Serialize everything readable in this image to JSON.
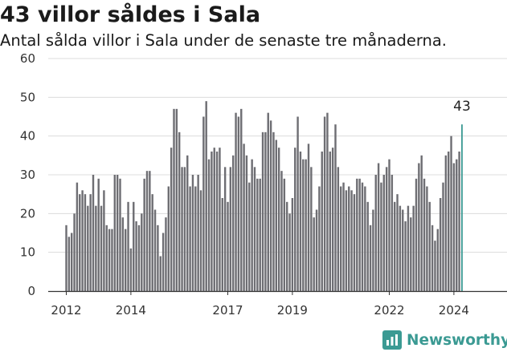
{
  "header": {
    "title": "43 villor såldes i Sala",
    "subtitle": "Antal sålda villor i Sala under de senaste tre månaderna."
  },
  "brand": {
    "name": "Newsworthy",
    "color": "#3b9a93"
  },
  "colors": {
    "bar": "#6e6e73",
    "highlight": "#3b9a93"
  },
  "chart_data": {
    "type": "bar",
    "title": "43 villor såldes i Sala",
    "subtitle": "Antal sålda villor i Sala under de senaste tre månaderna.",
    "xlabel": "",
    "ylabel": "",
    "ylim": [
      0,
      60
    ],
    "yticks": [
      0,
      10,
      20,
      30,
      40,
      50,
      60
    ],
    "xticks": [
      "2012",
      "2014",
      "2017",
      "2019",
      "2022",
      "2024"
    ],
    "grid": true,
    "x_start": "2012-01",
    "frequency": "monthly",
    "annotation": "43",
    "values": [
      17,
      14,
      15,
      20,
      28,
      25,
      26,
      25,
      22,
      25,
      30,
      22,
      29,
      22,
      26,
      17,
      16,
      16,
      30,
      30,
      29,
      19,
      16,
      23,
      11,
      23,
      18,
      17,
      20,
      29,
      31,
      31,
      25,
      21,
      17,
      9,
      15,
      19,
      27,
      37,
      47,
      47,
      41,
      32,
      32,
      35,
      27,
      30,
      27,
      30,
      26,
      45,
      49,
      34,
      36,
      37,
      36,
      37,
      24,
      32,
      23,
      32,
      35,
      46,
      45,
      47,
      38,
      35,
      28,
      34,
      32,
      29,
      29,
      41,
      41,
      46,
      44,
      41,
      39,
      37,
      31,
      29,
      23,
      20,
      24,
      37,
      45,
      36,
      34,
      34,
      38,
      32,
      19,
      21,
      27,
      36,
      45,
      46,
      36,
      37,
      43,
      32,
      27,
      28,
      26,
      27,
      26,
      25,
      29,
      29,
      28,
      27,
      23,
      17,
      21,
      30,
      33,
      28,
      30,
      32,
      34,
      30,
      23,
      25,
      22,
      21,
      18,
      22,
      19,
      22,
      29,
      33,
      35,
      29,
      27,
      23,
      17,
      13,
      16,
      24,
      28,
      35,
      36,
      40,
      33,
      34,
      36,
      43
    ]
  }
}
